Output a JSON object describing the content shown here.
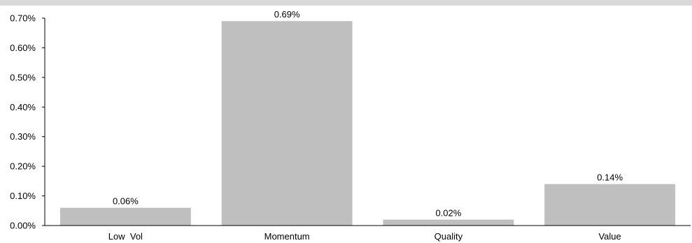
{
  "chart_data": {
    "type": "bar",
    "categories": [
      "Low  Vol",
      "Momentum",
      "Quality",
      "Value"
    ],
    "values": [
      0.06,
      0.69,
      0.02,
      0.14
    ],
    "data_labels": [
      "0.06%",
      "0.69%",
      "0.02%",
      "0.14%"
    ],
    "y_ticks": [
      0.0,
      0.1,
      0.2,
      0.3,
      0.4,
      0.5,
      0.6,
      0.7
    ],
    "y_tick_labels": [
      "0.00%",
      "0.10%",
      "0.20%",
      "0.30%",
      "0.40%",
      "0.50%",
      "0.60%",
      "0.70%"
    ],
    "ylim": [
      0,
      0.7
    ],
    "title": "",
    "xlabel": "",
    "ylabel": "",
    "grid": false,
    "legend": "none",
    "bar_color": "#bfbfbf",
    "axis_color": "#000000"
  }
}
